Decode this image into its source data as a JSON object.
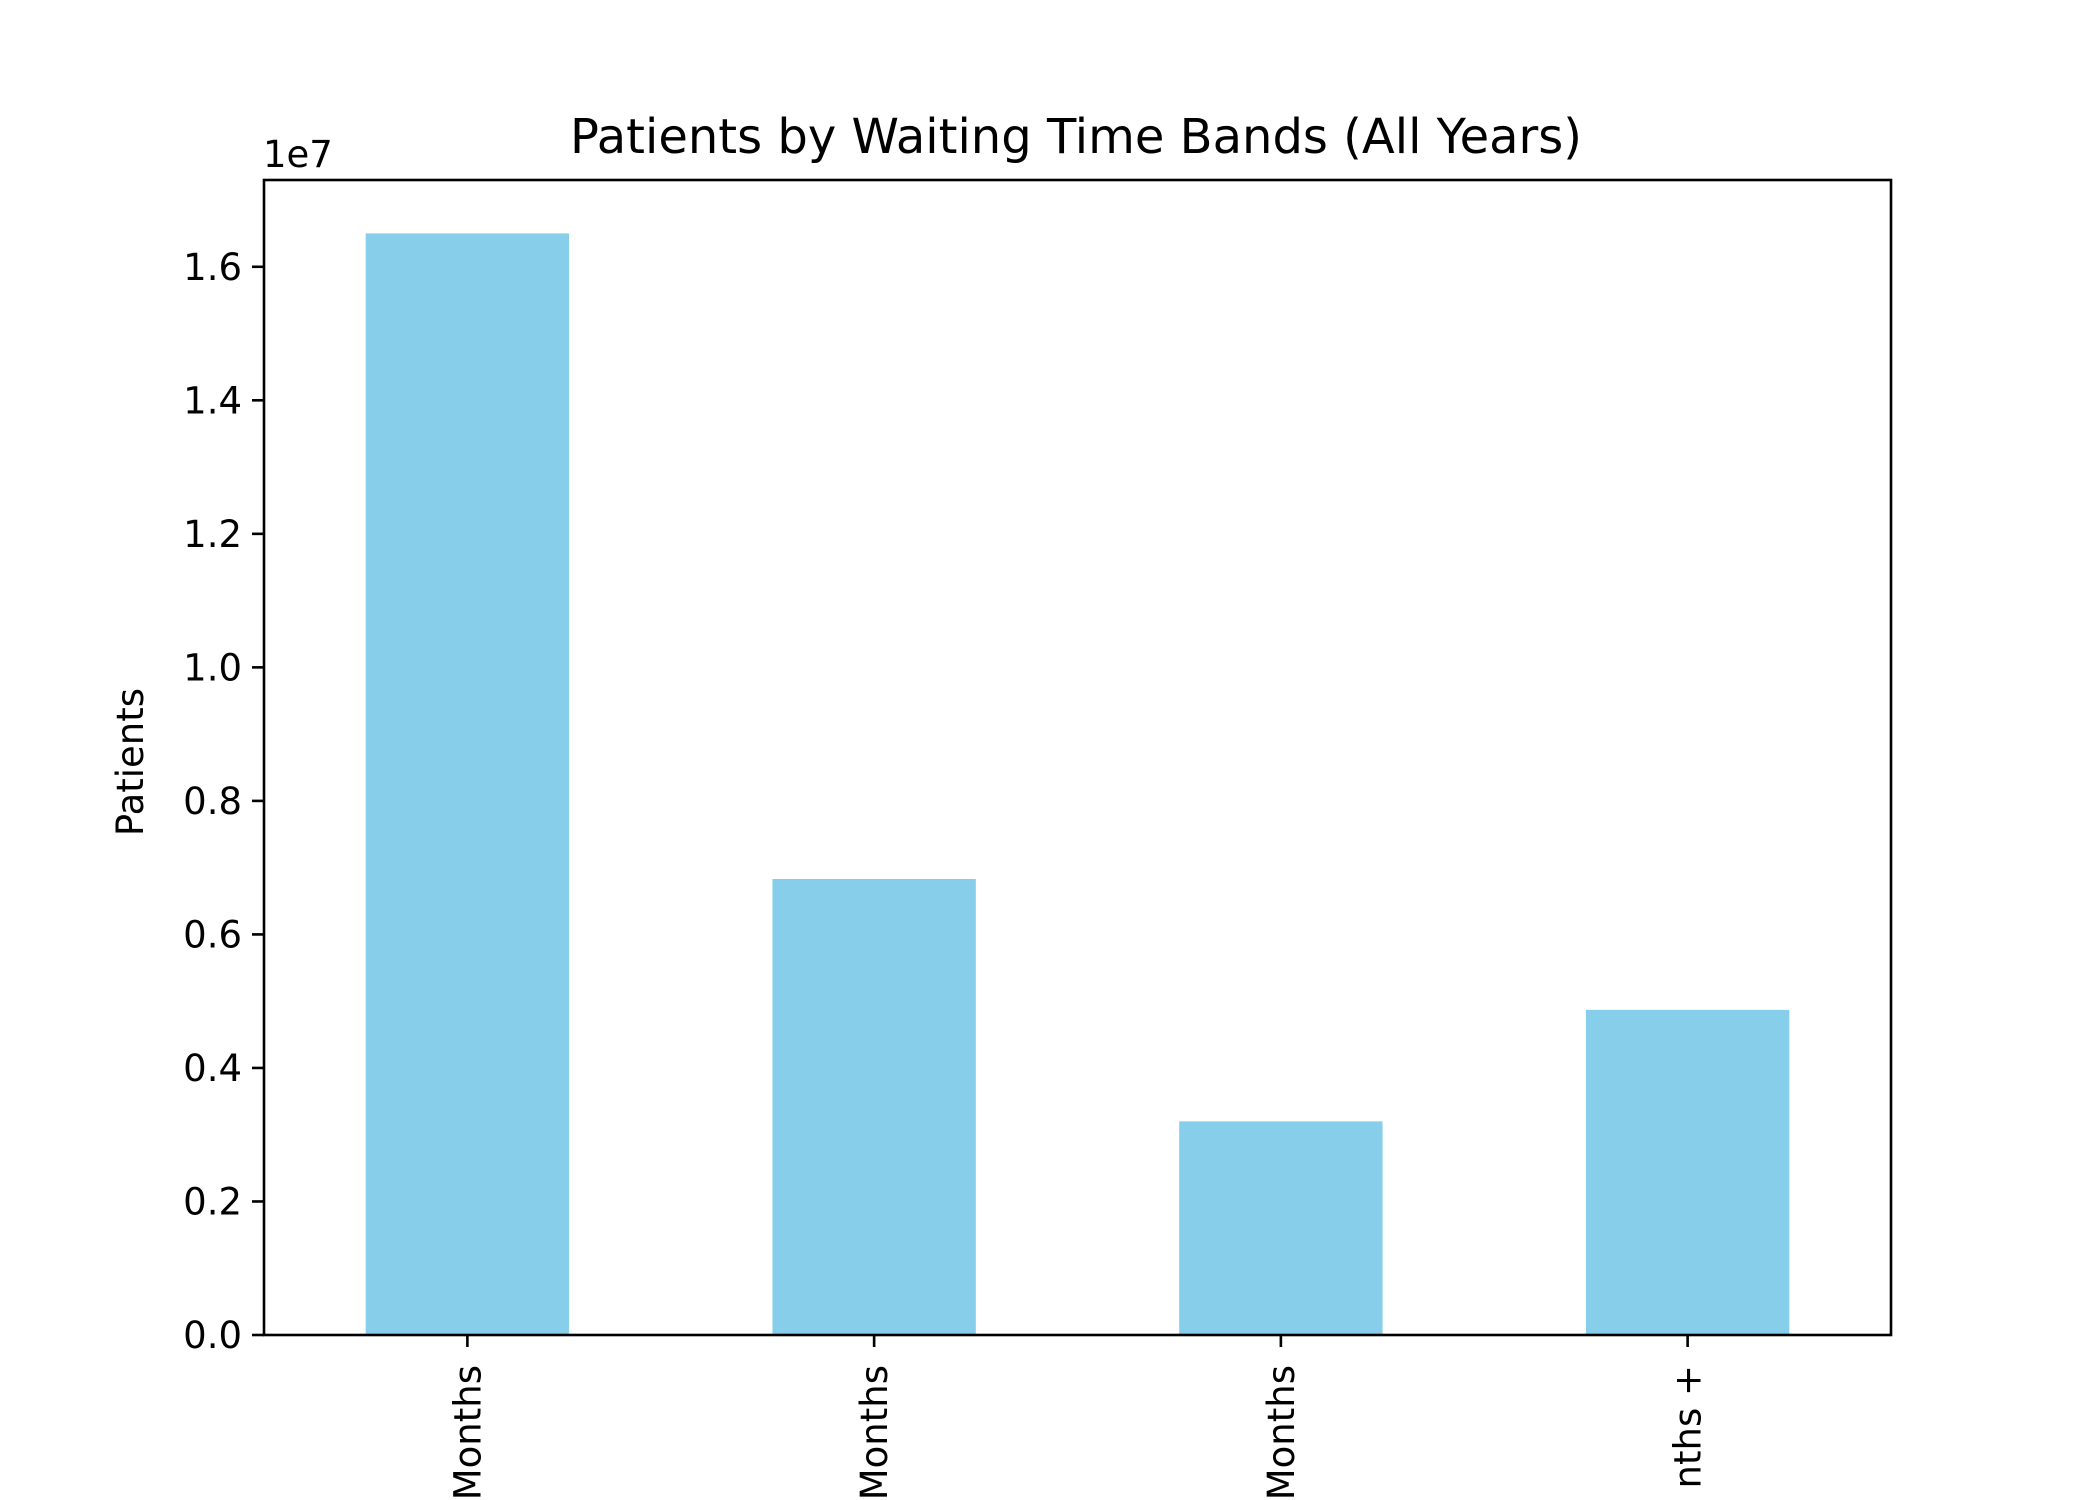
{
  "chart_data": {
    "type": "bar",
    "title": "Patients by Waiting Time Bands (All Years)",
    "xlabel": "",
    "ylabel": "Patients",
    "y_offset_text": "1e7",
    "y_scale_factor": 10000000,
    "categories": [
      "Months",
      "Months",
      "Months",
      "nths +"
    ],
    "values": [
      16500000,
      6830000,
      3200000,
      4870000
    ],
    "ylim": [
      0,
      17300000
    ],
    "yticks": [
      0,
      2000000,
      4000000,
      6000000,
      8000000,
      10000000,
      12000000,
      14000000,
      16000000
    ],
    "ytick_labels": [
      "0.0",
      "0.2",
      "0.4",
      "0.6",
      "0.8",
      "1.0",
      "1.2",
      "1.4",
      "1.6"
    ],
    "bar_color": "#87CEEB",
    "grid": false,
    "legend": false
  }
}
